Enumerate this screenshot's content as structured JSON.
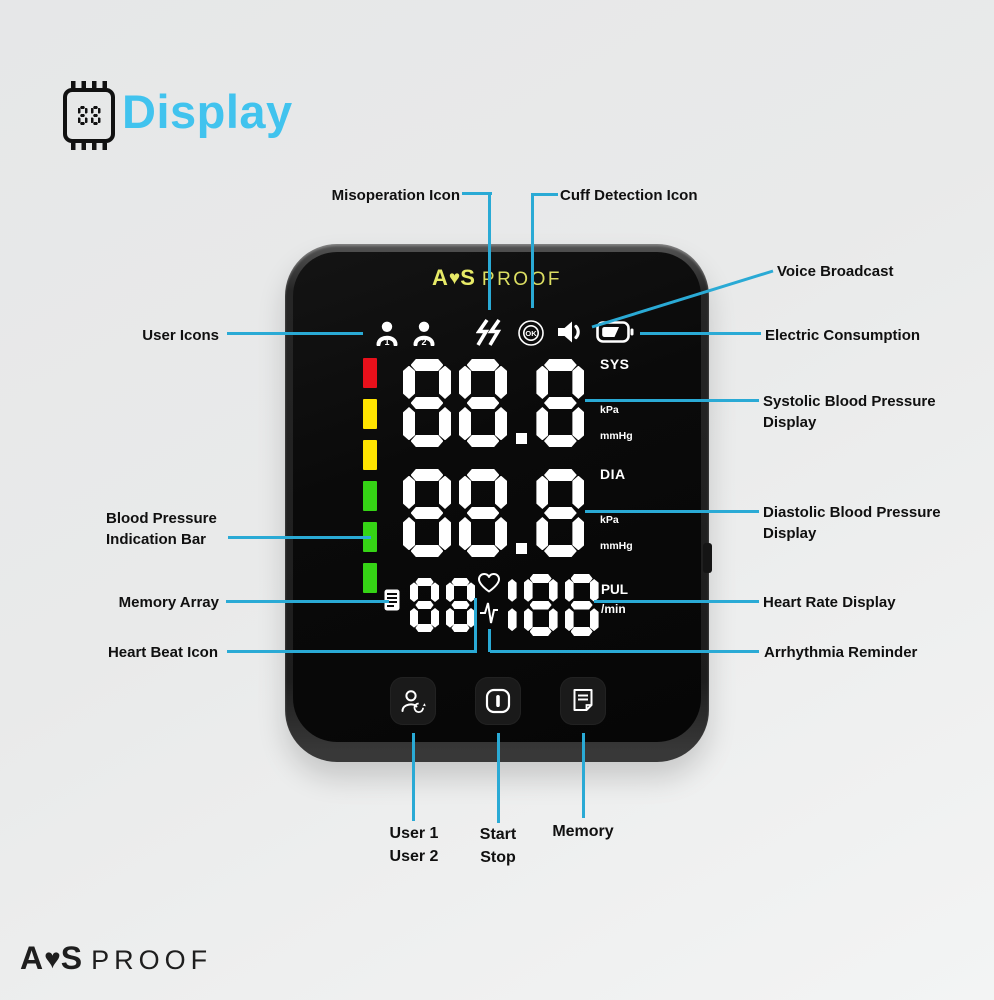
{
  "colors": {
    "accent_blue": "#41c3ee",
    "callout_line": "#2aaad5",
    "logo_yellow": "#e7ea67",
    "digit_white": "#ffffff"
  },
  "icons": {
    "heart_logo": "♥"
  },
  "header": {
    "title": "Display",
    "chip_value": "88"
  },
  "device": {
    "brand_prefix": "A",
    "brand_suffix": "S",
    "brand_thin": "PROOF",
    "indicator_segments": [
      "#e8101b",
      "#ffe400",
      "#ffe400",
      "#35d415",
      "#35d415",
      "#35d415"
    ],
    "screen": {
      "user1_label": "1",
      "user2_label": "2",
      "cuff_ok_text": "OK",
      "sys": {
        "value": "88.8",
        "label": "SYS",
        "units": [
          "kPa",
          "mmHg"
        ]
      },
      "dia": {
        "value": "88.8",
        "label": "DIA",
        "units": [
          "kPa",
          "mmHg"
        ]
      },
      "memory_value": "88",
      "pulse": {
        "value": "188",
        "label": "PUL",
        "unit": "/min"
      }
    }
  },
  "callouts": {
    "misoperation": "Misoperation Icon",
    "cuff_detection": "Cuff Detection Icon",
    "voice_broadcast": "Voice Broadcast",
    "user_icons": "User Icons",
    "electric_consumption": "Electric Consumption",
    "systolic_line1": "Systolic Blood Pressure",
    "systolic_line2": "Display",
    "bp_bar_line1": "Blood Pressure",
    "bp_bar_line2": "Indication Bar",
    "diastolic_line1": "Diastolic Blood Pressure",
    "diastolic_line2": "Display",
    "memory_array": "Memory Array",
    "heart_rate": "Heart Rate Display",
    "heart_beat": "Heart Beat Icon",
    "arrhythmia": "Arrhythmia Reminder"
  },
  "buttons": {
    "user_line1": "User 1",
    "user_line2": "User 2",
    "start_line1": "Start",
    "start_line2": "Stop",
    "memory": "Memory"
  },
  "footer": {
    "brand_prefix": "A",
    "brand_suffix": "S",
    "brand_thin": "PROOF"
  }
}
